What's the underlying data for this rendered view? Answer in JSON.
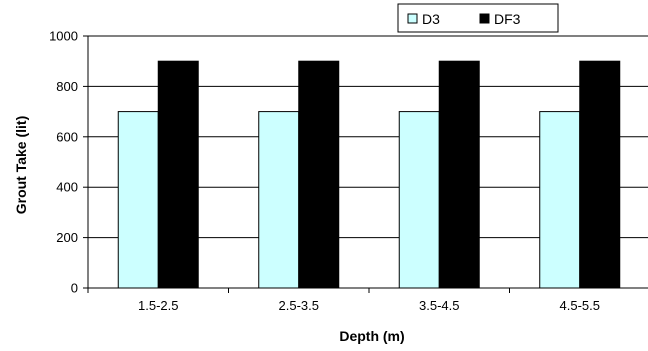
{
  "chart_data": {
    "type": "bar",
    "categories": [
      "1.5-2.5",
      "2.5-3.5",
      "3.5-4.5",
      "4.5-5.5"
    ],
    "series": [
      {
        "name": "D3",
        "values": [
          700,
          700,
          700,
          700
        ],
        "color": "#ccffff"
      },
      {
        "name": "DF3",
        "values": [
          900,
          900,
          900,
          900
        ],
        "color": "#000000"
      }
    ],
    "xlabel": "Depth (m)",
    "ylabel": "Grout Take (lit)",
    "ylim": [
      0,
      1000
    ],
    "yticks": [
      0,
      200,
      400,
      600,
      800,
      1000
    ],
    "grid": true,
    "legend_position": "top-right"
  }
}
